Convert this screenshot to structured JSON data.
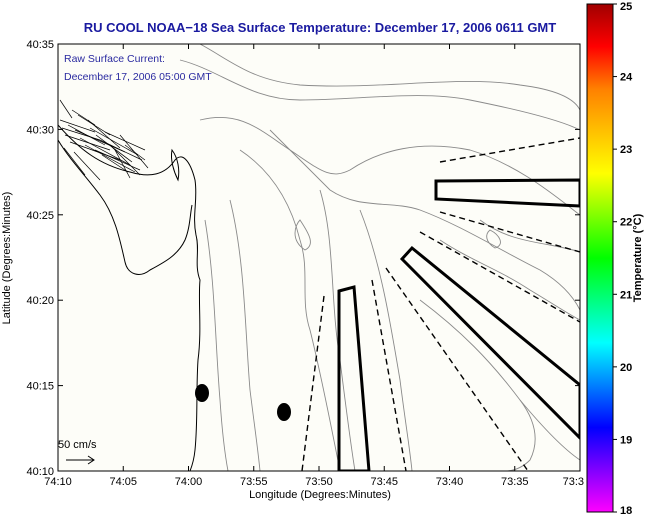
{
  "title": "RU COOL  NOAA−18  Sea Surface Temperature:  December 17, 2006 0611 GMT",
  "annotation": {
    "line1": "Raw Surface Current:",
    "line2": "December 17, 2006 05:00 GMT"
  },
  "scale_label": "50 cm/s",
  "axes": {
    "xlabel": "Longitude (Degrees:Minutes)",
    "ylabel": "Latitude (Degrees:Minutes)",
    "xticks": [
      "74:10",
      "74:05",
      "74:00",
      "73:55",
      "73:50",
      "73:45",
      "73:40",
      "73:35",
      "73:3"
    ],
    "yticks": [
      "40:35",
      "40:30",
      "40:25",
      "40:20",
      "40:15",
      "40:10"
    ]
  },
  "colorbar": {
    "label": "Temperature (°C)",
    "ticks": [
      "25",
      "24",
      "23",
      "22",
      "21",
      "20",
      "19",
      "18"
    ],
    "min": 18,
    "max": 25,
    "colors": [
      "#ff00ff",
      "#8000ff",
      "#0000ff",
      "#0080ff",
      "#00ffff",
      "#00ff80",
      "#00ff00",
      "#80ff00",
      "#ffff00",
      "#ffc000",
      "#ff8000",
      "#ff0000",
      "#a00000"
    ]
  },
  "colors": {
    "title": "#1a1aa0",
    "plot_background": "#fdfdf8",
    "contour": "#8a8a8a",
    "coastline": "#000000"
  }
}
